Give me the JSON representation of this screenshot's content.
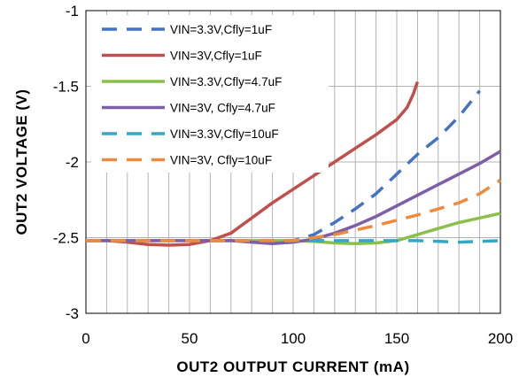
{
  "chart_data": {
    "type": "line",
    "title": "",
    "xlabel": "OUT2  OUTPUT  CURRENT  (mA)",
    "ylabel": "OUT2 VOLTAGE  (V)",
    "xlim": [
      0,
      200
    ],
    "ylim": [
      -3,
      -1
    ],
    "x_ticks": [
      "0",
      "50",
      "100",
      "150",
      "200"
    ],
    "y_ticks": [
      "-1",
      "-1.5",
      "-2",
      "-2.5",
      "-3"
    ],
    "grid": "vertical every 10 mA; horizontal every 0.5 V",
    "legend_position": "top-left",
    "series": [
      {
        "name": "VIN=3.3V,Cfly=1uF",
        "color": "#4472c4",
        "dash": "dashed",
        "points": [
          [
            0,
            -2.52
          ],
          [
            20,
            -2.52
          ],
          [
            40,
            -2.52
          ],
          [
            60,
            -2.52
          ],
          [
            80,
            -2.52
          ],
          [
            100,
            -2.52
          ],
          [
            110,
            -2.48
          ],
          [
            120,
            -2.4
          ],
          [
            130,
            -2.31
          ],
          [
            140,
            -2.21
          ],
          [
            150,
            -2.08
          ],
          [
            160,
            -1.95
          ],
          [
            170,
            -1.84
          ],
          [
            180,
            -1.7
          ],
          [
            190,
            -1.53
          ]
        ]
      },
      {
        "name": "VIN=3V,Cfly=1uF",
        "color": "#c0504d",
        "dash": "solid",
        "points": [
          [
            0,
            -2.52
          ],
          [
            10,
            -2.52
          ],
          [
            20,
            -2.53
          ],
          [
            30,
            -2.545
          ],
          [
            40,
            -2.55
          ],
          [
            50,
            -2.545
          ],
          [
            60,
            -2.52
          ],
          [
            70,
            -2.47
          ],
          [
            80,
            -2.37
          ],
          [
            90,
            -2.27
          ],
          [
            100,
            -2.18
          ],
          [
            110,
            -2.09
          ],
          [
            120,
            -2.0
          ],
          [
            130,
            -1.91
          ],
          [
            140,
            -1.82
          ],
          [
            150,
            -1.72
          ],
          [
            155,
            -1.64
          ],
          [
            158,
            -1.55
          ],
          [
            160,
            -1.47
          ]
        ]
      },
      {
        "name": "VIN=3.3V,Cfly=4.7uF",
        "color": "#8ac049",
        "dash": "solid",
        "points": [
          [
            0,
            -2.52
          ],
          [
            50,
            -2.52
          ],
          [
            100,
            -2.52
          ],
          [
            110,
            -2.525
          ],
          [
            120,
            -2.535
          ],
          [
            130,
            -2.54
          ],
          [
            140,
            -2.535
          ],
          [
            150,
            -2.52
          ],
          [
            160,
            -2.48
          ],
          [
            170,
            -2.44
          ],
          [
            180,
            -2.4
          ],
          [
            190,
            -2.37
          ],
          [
            200,
            -2.34
          ]
        ]
      },
      {
        "name": "VIN=3V,  Cfly=4.7uF",
        "color": "#7f5da8",
        "dash": "solid",
        "points": [
          [
            0,
            -2.52
          ],
          [
            50,
            -2.52
          ],
          [
            70,
            -2.52
          ],
          [
            80,
            -2.53
          ],
          [
            90,
            -2.54
          ],
          [
            100,
            -2.53
          ],
          [
            110,
            -2.51
          ],
          [
            120,
            -2.47
          ],
          [
            130,
            -2.42
          ],
          [
            140,
            -2.36
          ],
          [
            150,
            -2.29
          ],
          [
            160,
            -2.22
          ],
          [
            170,
            -2.15
          ],
          [
            180,
            -2.08
          ],
          [
            190,
            -2.01
          ],
          [
            200,
            -1.93
          ]
        ]
      },
      {
        "name": "VIN=3.3V,Cfly=10uF",
        "color": "#31a8c8",
        "dash": "dashed",
        "points": [
          [
            0,
            -2.52
          ],
          [
            50,
            -2.52
          ],
          [
            100,
            -2.52
          ],
          [
            140,
            -2.52
          ],
          [
            160,
            -2.52
          ],
          [
            180,
            -2.53
          ],
          [
            190,
            -2.525
          ],
          [
            200,
            -2.52
          ]
        ]
      },
      {
        "name": "VIN=3V,  Cfly=10uF",
        "color": "#ed8a3c",
        "dash": "dashed",
        "points": [
          [
            0,
            -2.52
          ],
          [
            50,
            -2.52
          ],
          [
            80,
            -2.52
          ],
          [
            100,
            -2.52
          ],
          [
            120,
            -2.48
          ],
          [
            140,
            -2.42
          ],
          [
            160,
            -2.35
          ],
          [
            180,
            -2.27
          ],
          [
            190,
            -2.21
          ],
          [
            200,
            -2.12
          ]
        ]
      }
    ]
  }
}
